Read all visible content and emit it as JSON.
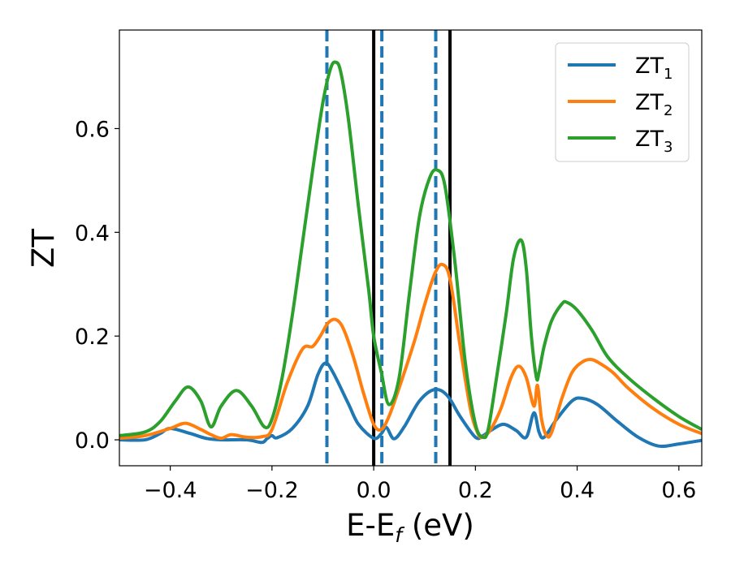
{
  "chart_data": {
    "type": "line",
    "xlabel_main": "E-E",
    "xlabel_sub": "f",
    "xlabel_unit": " (eV)",
    "ylabel": "ZT",
    "xlim": [
      -0.5,
      0.645
    ],
    "ylim": [
      -0.05,
      0.79
    ],
    "xticks": [
      -0.4,
      -0.2,
      0.0,
      0.2,
      0.4,
      0.6
    ],
    "xtick_labels": [
      "−0.4",
      "−0.2",
      "0.0",
      "0.2",
      "0.4",
      "0.6"
    ],
    "yticks": [
      0.0,
      0.2,
      0.4,
      0.6
    ],
    "ytick_labels": [
      "0.0",
      "0.2",
      "0.4",
      "0.6"
    ],
    "grid": false,
    "legend_position": "top-right",
    "vlines": [
      {
        "x": -0.092,
        "style": "dashed",
        "color": "#1f77b4"
      },
      {
        "x": 0.0,
        "style": "solid",
        "color": "#000000"
      },
      {
        "x": 0.016,
        "style": "dashed",
        "color": "#1f77b4"
      },
      {
        "x": 0.122,
        "style": "dashed",
        "color": "#1f77b4"
      },
      {
        "x": 0.15,
        "style": "solid",
        "color": "#000000"
      }
    ],
    "series": [
      {
        "name": "ZT",
        "subscript": "1",
        "color": "#1f77b4",
        "x": [
          -0.5,
          -0.45,
          -0.42,
          -0.4,
          -0.36,
          -0.33,
          -0.3,
          -0.25,
          -0.22,
          -0.21,
          -0.2,
          -0.19,
          -0.16,
          -0.13,
          -0.11,
          -0.095,
          -0.08,
          -0.05,
          -0.03,
          0.0,
          0.015,
          0.025,
          0.04,
          0.06,
          0.09,
          0.12,
          0.145,
          0.17,
          0.2,
          0.215,
          0.23,
          0.255,
          0.28,
          0.3,
          0.315,
          0.325,
          0.335,
          0.36,
          0.39,
          0.41,
          0.44,
          0.48,
          0.52,
          0.56,
          0.6,
          0.645
        ],
        "values": [
          0.0,
          0.0,
          0.012,
          0.022,
          0.012,
          0.003,
          0.0,
          0.0,
          -0.005,
          0.002,
          0.008,
          0.004,
          0.022,
          0.065,
          0.125,
          0.148,
          0.13,
          0.07,
          0.03,
          0.003,
          0.012,
          0.024,
          0.002,
          0.025,
          0.075,
          0.097,
          0.085,
          0.045,
          0.005,
          0.008,
          0.018,
          0.03,
          0.018,
          0.005,
          0.052,
          0.015,
          0.005,
          0.04,
          0.075,
          0.08,
          0.068,
          0.035,
          0.005,
          -0.012,
          -0.008,
          -0.001
        ]
      },
      {
        "name": "ZT",
        "subscript": "2",
        "color": "#ff7f0e",
        "x": [
          -0.5,
          -0.45,
          -0.4,
          -0.37,
          -0.34,
          -0.32,
          -0.3,
          -0.28,
          -0.25,
          -0.22,
          -0.2,
          -0.17,
          -0.14,
          -0.12,
          -0.105,
          -0.09,
          -0.075,
          -0.06,
          -0.04,
          -0.02,
          0.0,
          0.015,
          0.03,
          0.05,
          0.08,
          0.1,
          0.12,
          0.135,
          0.15,
          0.17,
          0.19,
          0.205,
          0.215,
          0.23,
          0.25,
          0.27,
          0.285,
          0.3,
          0.315,
          0.322,
          0.33,
          0.34,
          0.35,
          0.37,
          0.39,
          0.41,
          0.425,
          0.44,
          0.47,
          0.5,
          0.55,
          0.6,
          0.645
        ],
        "values": [
          0.003,
          0.008,
          0.022,
          0.032,
          0.02,
          0.01,
          0.003,
          0.01,
          0.005,
          0.006,
          0.02,
          0.11,
          0.175,
          0.18,
          0.2,
          0.225,
          0.232,
          0.215,
          0.16,
          0.09,
          0.03,
          0.02,
          0.045,
          0.1,
          0.19,
          0.26,
          0.32,
          0.338,
          0.31,
          0.18,
          0.06,
          0.012,
          0.005,
          0.02,
          0.06,
          0.12,
          0.142,
          0.12,
          0.065,
          0.105,
          0.04,
          0.008,
          0.015,
          0.08,
          0.13,
          0.15,
          0.155,
          0.15,
          0.13,
          0.1,
          0.06,
          0.03,
          0.012
        ]
      },
      {
        "name": "ZT",
        "subscript": "3",
        "color": "#2ca02c",
        "x": [
          -0.5,
          -0.45,
          -0.42,
          -0.39,
          -0.365,
          -0.34,
          -0.32,
          -0.3,
          -0.27,
          -0.24,
          -0.215,
          -0.2,
          -0.18,
          -0.16,
          -0.14,
          -0.12,
          -0.1,
          -0.085,
          -0.075,
          -0.065,
          -0.05,
          -0.03,
          -0.01,
          0.0,
          0.015,
          0.03,
          0.05,
          0.07,
          0.09,
          0.11,
          0.125,
          0.14,
          0.16,
          0.18,
          0.2,
          0.215,
          0.225,
          0.24,
          0.26,
          0.275,
          0.29,
          0.3,
          0.31,
          0.32,
          0.325,
          0.335,
          0.35,
          0.37,
          0.38,
          0.4,
          0.43,
          0.46,
          0.5,
          0.55,
          0.6,
          0.645
        ],
        "values": [
          0.008,
          0.015,
          0.035,
          0.075,
          0.102,
          0.075,
          0.025,
          0.065,
          0.095,
          0.065,
          0.025,
          0.04,
          0.12,
          0.24,
          0.38,
          0.52,
          0.65,
          0.715,
          0.728,
          0.71,
          0.62,
          0.45,
          0.29,
          0.2,
          0.13,
          0.068,
          0.12,
          0.28,
          0.43,
          0.505,
          0.52,
          0.49,
          0.34,
          0.15,
          0.03,
          0.005,
          0.02,
          0.11,
          0.24,
          0.35,
          0.385,
          0.33,
          0.2,
          0.12,
          0.13,
          0.18,
          0.23,
          0.262,
          0.265,
          0.25,
          0.21,
          0.16,
          0.12,
          0.08,
          0.045,
          0.02
        ]
      }
    ]
  }
}
